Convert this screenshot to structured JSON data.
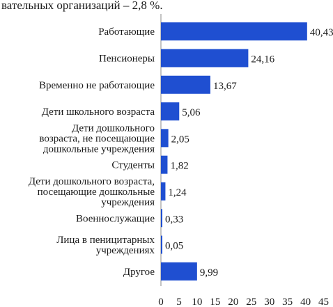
{
  "header": {
    "text": "вательных организаций – 2,8 %."
  },
  "chart_data": {
    "type": "bar",
    "orientation": "horizontal",
    "categories": [
      [
        "Работающие"
      ],
      [
        "Пенсионеры"
      ],
      [
        "Временно не работающие"
      ],
      [
        "Дети школьного возраста"
      ],
      [
        "Дети дошкольного",
        "возраста, не посещающие",
        "дошкольные учреждения"
      ],
      [
        "Студенты"
      ],
      [
        "Дети дошкольного возраста,",
        "посещающие дошкольные",
        "учреждения"
      ],
      [
        "Военнослужащие"
      ],
      [
        "Лица в пеницитарных",
        "учреждениях"
      ],
      [
        "Другое"
      ]
    ],
    "values": [
      40.43,
      24.16,
      13.67,
      5.06,
      2.05,
      1.82,
      1.24,
      0.33,
      0.05,
      9.99
    ],
    "value_labels": [
      "40,43",
      "24,16",
      "13,67",
      "5,06",
      "2,05",
      "1,82",
      "1,24",
      "0,33",
      "0,05",
      "9,99"
    ],
    "xlim": [
      0,
      45
    ],
    "xticks": [
      0,
      5,
      10,
      15,
      20,
      25,
      30,
      35,
      40,
      45
    ],
    "bar_color": "#1f4fd1",
    "grid": false,
    "title": "",
    "xlabel": "",
    "ylabel": ""
  }
}
